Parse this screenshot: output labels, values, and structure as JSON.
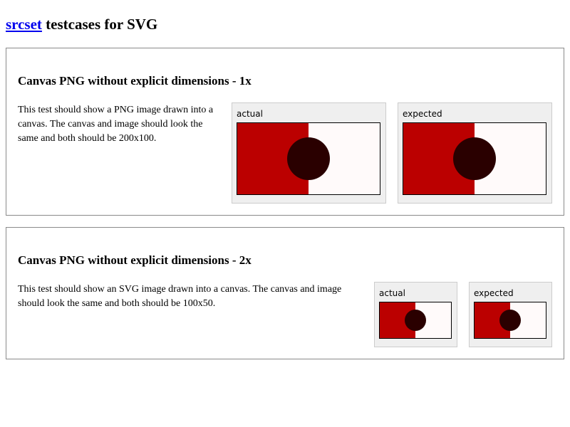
{
  "header": {
    "link_text": "srcset",
    "rest_text": " testcases for SVG"
  },
  "colors": {
    "link": "#0000ee",
    "red_half": "#bb0000",
    "white_half": "#fffafa",
    "circle": "#2a0000",
    "figure_bg": "#efefef"
  },
  "testcases": [
    {
      "title": "Canvas PNG without explicit dimensions - 1x",
      "description": "This test should show a PNG image drawn into a canvas. The canvas and image should look the same and both should be 200x100.",
      "actual_label": "actual",
      "expected_label": "expected"
    },
    {
      "title": "Canvas PNG without explicit dimensions - 2x",
      "description": "This test should show an SVG image drawn into a canvas. The canvas and image should look the same and both should be 100x50.",
      "actual_label": "actual",
      "expected_label": "expected"
    }
  ]
}
